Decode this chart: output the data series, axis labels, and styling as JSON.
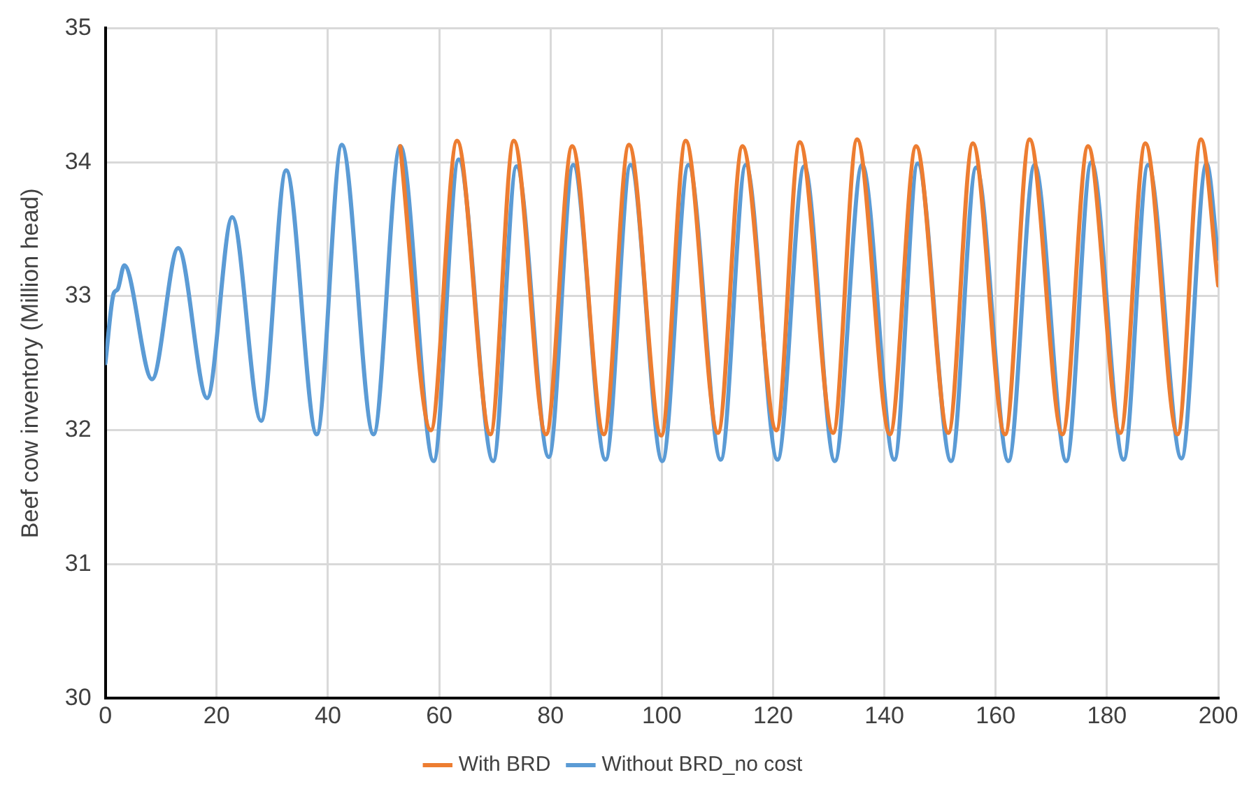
{
  "chart_data": {
    "type": "line",
    "ylabel": "Beef cow inventory (Million head)",
    "xlim": [
      0,
      200
    ],
    "xticks": [
      0,
      20,
      40,
      60,
      80,
      100,
      120,
      140,
      160,
      180,
      200
    ],
    "ylim": [
      30,
      35
    ],
    "yticks": [
      30,
      31,
      32,
      33,
      34,
      35
    ],
    "grid": true,
    "legend": "bottom",
    "marker": "none",
    "line_style": "solid",
    "series": [
      {
        "name": "With BRD",
        "color": "#ed7d31",
        "x": [
          53.0,
          58.5,
          63.2,
          69.2,
          73.4,
          79.2,
          83.9,
          89.6,
          94.1,
          99.9,
          104.3,
          110.1,
          114.5,
          120.6,
          124.8,
          130.8,
          135.1,
          141.0,
          145.7,
          151.5,
          155.9,
          161.7,
          166.1,
          172.0,
          176.6,
          182.4,
          186.9,
          192.7,
          196.9,
          200
        ],
        "values": [
          34.12,
          32.0,
          34.16,
          31.97,
          34.16,
          31.97,
          34.12,
          31.97,
          34.13,
          31.96,
          34.16,
          31.98,
          34.12,
          32.0,
          34.15,
          31.98,
          34.17,
          31.97,
          34.12,
          31.98,
          34.14,
          31.97,
          34.17,
          31.97,
          34.12,
          31.98,
          34.14,
          31.97,
          34.17,
          33.08
        ]
      },
      {
        "name": "Without BRD_no cost",
        "color": "#5b9bd5",
        "x": [
          0,
          1.5,
          2.2,
          3.4,
          8.4,
          13.1,
          18.3,
          22.8,
          28.0,
          32.5,
          38.0,
          42.5,
          48.2,
          53.0,
          59.0,
          63.5,
          69.7,
          73.9,
          79.7,
          84.1,
          89.9,
          94.4,
          100.1,
          104.8,
          110.6,
          115.1,
          120.8,
          125.6,
          131.1,
          136.0,
          141.8,
          146.0,
          152.0,
          156.5,
          162.3,
          167.0,
          172.7,
          177.2,
          183.0,
          187.4,
          193.4,
          197.9,
          200
        ],
        "values": [
          32.5,
          33.02,
          33.05,
          33.23,
          32.38,
          33.36,
          32.24,
          33.59,
          32.07,
          33.94,
          31.97,
          34.13,
          31.97,
          34.12,
          31.77,
          34.02,
          31.77,
          33.97,
          31.8,
          33.98,
          31.78,
          33.98,
          31.77,
          33.98,
          31.78,
          33.98,
          31.78,
          33.97,
          31.77,
          33.98,
          31.78,
          33.99,
          31.77,
          33.96,
          31.77,
          33.98,
          31.77,
          34.0,
          31.78,
          33.98,
          31.79,
          33.99,
          33.28
        ]
      }
    ]
  }
}
